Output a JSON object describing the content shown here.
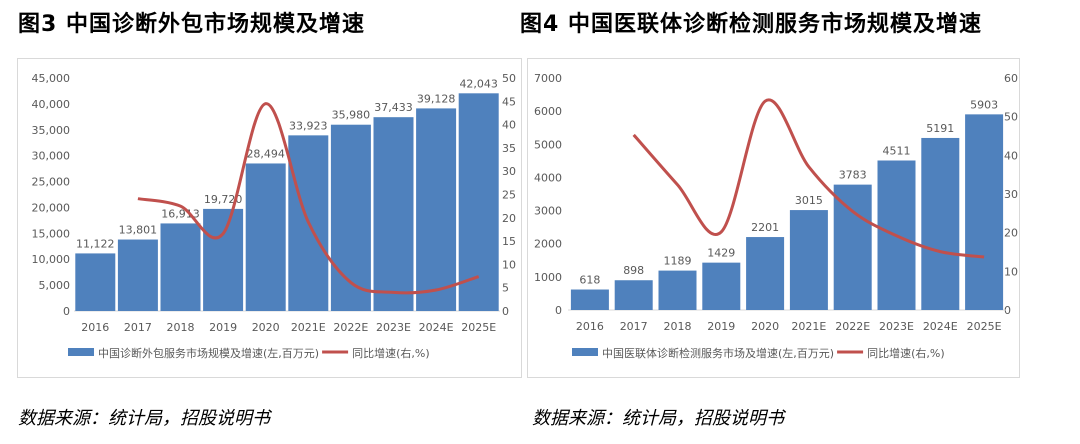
{
  "colors": {
    "bar": "#4f81bd",
    "line": "#c0504d"
  },
  "chart_data": [
    {
      "type": "bar+line",
      "title": "图3 中国诊断外包市场规模及增速",
      "categories": [
        "2016",
        "2017",
        "2018",
        "2019",
        "2020",
        "2021E",
        "2022E",
        "2023E",
        "2024E",
        "2025E"
      ],
      "series": [
        {
          "name": "中国诊断外包服务市场规模及增速(左,百万元)",
          "type": "bar",
          "axis": "left",
          "values": [
            11122,
            13801,
            16913,
            19720,
            28494,
            33923,
            35980,
            37433,
            39128,
            42043
          ],
          "labels": [
            "11,122",
            "13,801",
            "16,913",
            "19,720",
            "28,494",
            "33,923",
            "35,980",
            "37,433",
            "39,128",
            "42,043"
          ]
        },
        {
          "name": "同比增速(右,%)",
          "type": "line",
          "axis": "right",
          "values": [
            null,
            24.1,
            22.5,
            16.6,
            44.5,
            19.1,
            6.1,
            4.0,
            4.5,
            7.4
          ]
        }
      ],
      "ylim_left": [
        0,
        45000
      ],
      "yticks_left": [
        "0",
        "5,000",
        "10,000",
        "15,000",
        "20,000",
        "25,000",
        "30,000",
        "35,000",
        "40,000",
        "45,000"
      ],
      "ylim_right": [
        0,
        50
      ],
      "yticks_right": [
        "0",
        "5",
        "10",
        "15",
        "20",
        "25",
        "30",
        "35",
        "40",
        "45",
        "50"
      ],
      "legend": "bottom",
      "grid": false,
      "source": "数据来源：统计局，招股说明书"
    },
    {
      "type": "bar+line",
      "title": "图4 中国医联体诊断检测服务市场规模及增速",
      "categories": [
        "2016",
        "2017",
        "2018",
        "2019",
        "2020",
        "2021E",
        "2022E",
        "2023E",
        "2024E",
        "2025E"
      ],
      "series": [
        {
          "name": "中国医联体诊断检测服务市场及增速(左,百万元)",
          "type": "bar",
          "axis": "left",
          "values": [
            618,
            898,
            1189,
            1429,
            2201,
            3015,
            3783,
            4511,
            5191,
            5903
          ],
          "labels": [
            "618",
            "898",
            "1189",
            "1429",
            "2201",
            "3015",
            "3783",
            "4511",
            "5191",
            "5903"
          ]
        },
        {
          "name": "同比增速(右,%)",
          "type": "line",
          "axis": "right",
          "values": [
            null,
            45.3,
            32.4,
            20.2,
            54.0,
            37.0,
            25.5,
            19.2,
            15.1,
            13.7
          ]
        }
      ],
      "ylim_left": [
        0,
        7000
      ],
      "yticks_left": [
        "0",
        "1000",
        "2000",
        "3000",
        "4000",
        "5000",
        "6000",
        "7000"
      ],
      "ylim_right": [
        0,
        60
      ],
      "yticks_right": [
        "0",
        "10",
        "20",
        "30",
        "40",
        "50",
        "60"
      ],
      "legend": "bottom",
      "grid": false,
      "source": "数据来源：统计局，招股说明书"
    }
  ]
}
